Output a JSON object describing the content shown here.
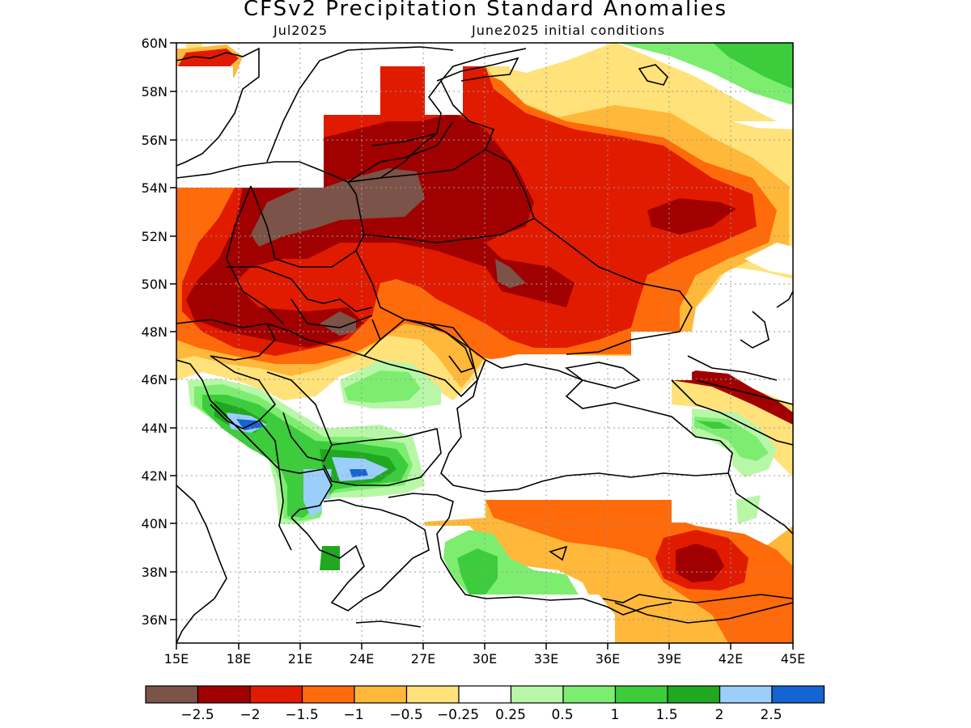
{
  "title": "CFSv2 Precipitation Standard Anomalies",
  "subtitle_left": "Jul2025",
  "subtitle_right": "June2025 initial conditions",
  "lat_labels": [
    "60N",
    "58N",
    "56N",
    "54N",
    "52N",
    "50N",
    "48N",
    "46N",
    "44N",
    "42N",
    "40N",
    "38N",
    "36N"
  ],
  "lon_labels": [
    "15E",
    "18E",
    "21E",
    "24E",
    "27E",
    "30E",
    "33E",
    "36E",
    "39E",
    "42E",
    "45E"
  ],
  "legend": {
    "labels": [
      "-2.5",
      "-2",
      "-1.5",
      "-1",
      "-0.5",
      "-0.25",
      "0.25",
      "0.5",
      "1",
      "1.5",
      "2",
      "2.5"
    ],
    "colors": [
      "#7b5348",
      "#a10000",
      "#e01b00",
      "#ff6a0a",
      "#ffb83a",
      "#ffe27a",
      "#ffffff",
      "#b8f7a8",
      "#7ded70",
      "#3ccc3c",
      "#20a820",
      "#9ccefa",
      "#1464d2"
    ]
  }
}
